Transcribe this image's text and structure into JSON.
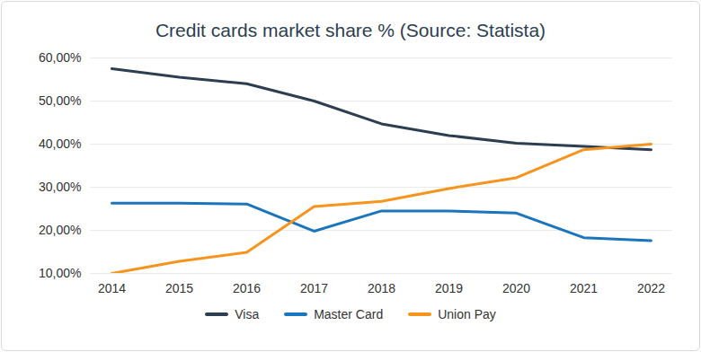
{
  "chart_data": {
    "type": "line",
    "title": "Credit cards market share % (Source: Statista)",
    "categories": [
      "2014",
      "2015",
      "2016",
      "2017",
      "2018",
      "2019",
      "2020",
      "2021",
      "2022"
    ],
    "series": [
      {
        "name": "Visa",
        "color": "#2d3e50",
        "values": [
          57.5,
          55.5,
          54,
          50,
          44.7,
          42,
          40.2,
          39.5,
          38.7
        ]
      },
      {
        "name": "Master Card",
        "color": "#1b75bc",
        "values": [
          26.3,
          26.3,
          26.1,
          19.8,
          24.5,
          24.5,
          24,
          18.3,
          17.6
        ]
      },
      {
        "name": "Union Pay",
        "color": "#f7941d",
        "values": [
          10,
          12.8,
          14.9,
          25.5,
          26.7,
          29.7,
          32.2,
          38.7,
          40
        ]
      }
    ],
    "ylim": [
      10,
      60
    ],
    "yticks": [
      {
        "value": 10,
        "label": "10,00%"
      },
      {
        "value": 20,
        "label": "20,00%"
      },
      {
        "value": 30,
        "label": "30,00%"
      },
      {
        "value": 40,
        "label": "40,00%"
      },
      {
        "value": 50,
        "label": "50,00%"
      },
      {
        "value": 60,
        "label": "60,00%"
      }
    ],
    "grid": true,
    "legend": "bottom"
  }
}
